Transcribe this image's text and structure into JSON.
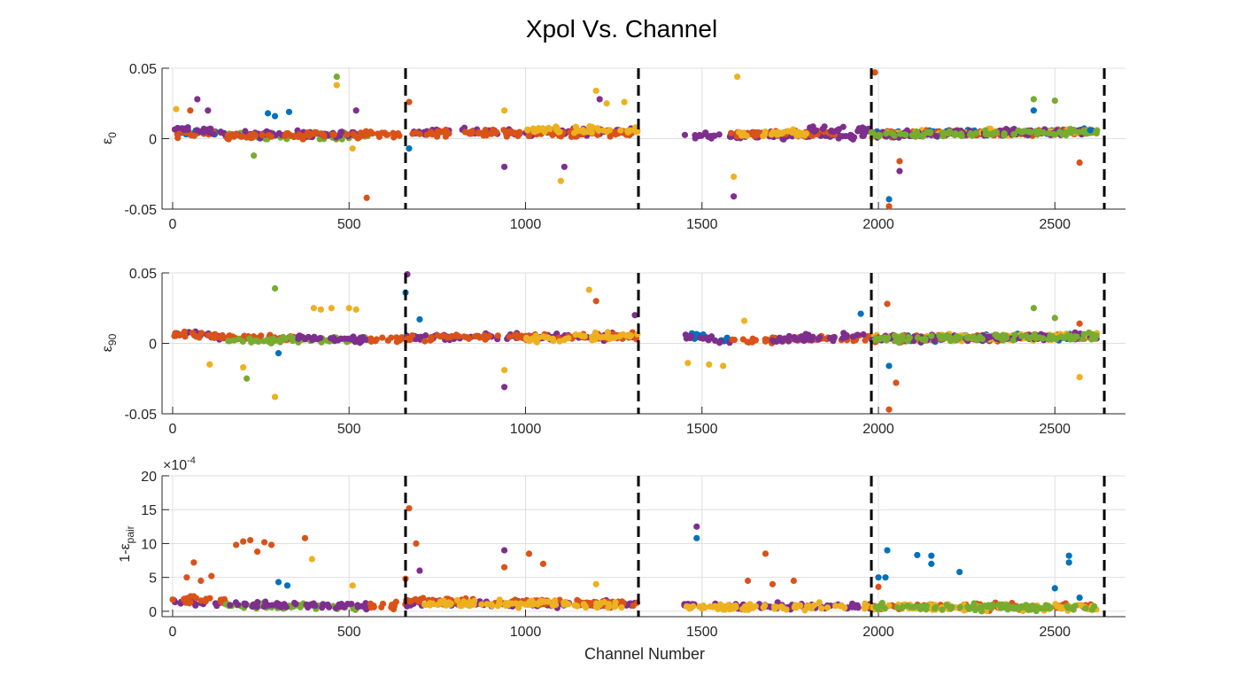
{
  "figure_title": "Xpol Vs. Channel",
  "xlabel": "Channel Number",
  "chart_data": [
    {
      "type": "scatter",
      "ylabel_base": "ε",
      "ylabel_sub": "0",
      "xlim": [
        -30,
        2700
      ],
      "ylim": [
        -0.05,
        0.05
      ],
      "xticks": [
        0,
        500,
        1000,
        1500,
        2000,
        2500
      ],
      "xtick_labels": [
        "0",
        "500",
        "1000",
        "1500",
        "2000",
        "2500"
      ],
      "yticks": [
        -0.05,
        0,
        0.05
      ],
      "ytick_labels": [
        "-0.05",
        "0",
        "0.05"
      ],
      "grid": true,
      "vertical_dashed_lines": [
        660,
        1320,
        1980,
        2640
      ],
      "series_colors": [
        "#0072BD",
        "#D95319",
        "#EDB120",
        "#7E2F8E",
        "#77AC30"
      ],
      "clusters": [
        {
          "x": [
            0,
            150
          ],
          "y": [
            0.005,
            0.004
          ],
          "s": 0
        },
        {
          "x": [
            0,
            150
          ],
          "y": [
            0.003,
            0.005
          ],
          "s": 1
        },
        {
          "x": [
            0,
            150
          ],
          "y": [
            0.006,
            0.005
          ],
          "s": 3
        },
        {
          "x": [
            150,
            560
          ],
          "y": [
            0.002,
            0.002
          ],
          "s": 4
        },
        {
          "x": [
            150,
            560
          ],
          "y": [
            0.003,
            0.003
          ],
          "s": 3
        },
        {
          "x": [
            150,
            560
          ],
          "y": [
            0.002,
            0.003
          ],
          "s": 1
        },
        {
          "x": [
            560,
            660
          ],
          "y": [
            0.003,
            0.003
          ],
          "s": 1
        },
        {
          "x": [
            660,
            1320
          ],
          "y": [
            0.005,
            0.005
          ],
          "s": 3
        },
        {
          "x": [
            660,
            1320
          ],
          "y": [
            0.004,
            0.004
          ],
          "s": 1
        },
        {
          "x": [
            1000,
            1320
          ],
          "y": [
            0.006,
            0.006
          ],
          "s": 2
        },
        {
          "x": [
            1450,
            1980
          ],
          "y": [
            0.002,
            0.002
          ],
          "s": 3
        },
        {
          "x": [
            1580,
            1880
          ],
          "y": [
            0.003,
            0.004
          ],
          "s": 1
        },
        {
          "x": [
            1600,
            1800
          ],
          "y": [
            0.003,
            0.004
          ],
          "s": 2
        },
        {
          "x": [
            1800,
            1980
          ],
          "y": [
            0.006,
            0.006
          ],
          "s": 3
        },
        {
          "x": [
            1980,
            2620
          ],
          "y": [
            0.003,
            0.005
          ],
          "s": 0
        },
        {
          "x": [
            1980,
            2620
          ],
          "y": [
            0.003,
            0.005
          ],
          "s": 1
        },
        {
          "x": [
            1980,
            2620
          ],
          "y": [
            0.003,
            0.005
          ],
          "s": 2
        },
        {
          "x": [
            1980,
            2620
          ],
          "y": [
            0.003,
            0.005
          ],
          "s": 3
        },
        {
          "x": [
            1980,
            2620
          ],
          "y": [
            0.003,
            0.005
          ],
          "s": 4
        }
      ],
      "points": [
        {
          "x": 465,
          "y": 0.044,
          "s": 4
        },
        {
          "x": 465,
          "y": 0.038,
          "s": 2
        },
        {
          "x": 70,
          "y": 0.028,
          "s": 3
        },
        {
          "x": 10,
          "y": 0.021,
          "s": 2
        },
        {
          "x": 50,
          "y": 0.02,
          "s": 1
        },
        {
          "x": 100,
          "y": 0.02,
          "s": 3
        },
        {
          "x": 270,
          "y": 0.018,
          "s": 0
        },
        {
          "x": 330,
          "y": 0.019,
          "s": 0
        },
        {
          "x": 290,
          "y": 0.016,
          "s": 0
        },
        {
          "x": 520,
          "y": 0.02,
          "s": 3
        },
        {
          "x": 230,
          "y": -0.012,
          "s": 4
        },
        {
          "x": 550,
          "y": -0.042,
          "s": 1
        },
        {
          "x": 510,
          "y": -0.007,
          "s": 2
        },
        {
          "x": 670,
          "y": 0.026,
          "s": 1
        },
        {
          "x": 670,
          "y": -0.007,
          "s": 0
        },
        {
          "x": 940,
          "y": -0.02,
          "s": 3
        },
        {
          "x": 940,
          "y": 0.02,
          "s": 2
        },
        {
          "x": 1100,
          "y": -0.03,
          "s": 2
        },
        {
          "x": 1110,
          "y": -0.02,
          "s": 3
        },
        {
          "x": 1200,
          "y": 0.034,
          "s": 2
        },
        {
          "x": 1210,
          "y": 0.028,
          "s": 3
        },
        {
          "x": 1230,
          "y": 0.025,
          "s": 2
        },
        {
          "x": 1280,
          "y": 0.026,
          "s": 2
        },
        {
          "x": 1600,
          "y": 0.044,
          "s": 2
        },
        {
          "x": 1590,
          "y": -0.027,
          "s": 2
        },
        {
          "x": 1590,
          "y": -0.041,
          "s": 3
        },
        {
          "x": 1990,
          "y": 0.047,
          "s": 1
        },
        {
          "x": 2030,
          "y": -0.043,
          "s": 0
        },
        {
          "x": 2030,
          "y": -0.048,
          "s": 1
        },
        {
          "x": 2060,
          "y": -0.023,
          "s": 3
        },
        {
          "x": 2060,
          "y": -0.016,
          "s": 1
        },
        {
          "x": 2440,
          "y": 0.028,
          "s": 4
        },
        {
          "x": 2440,
          "y": 0.02,
          "s": 0
        },
        {
          "x": 2500,
          "y": 0.027,
          "s": 4
        },
        {
          "x": 2570,
          "y": -0.017,
          "s": 1
        },
        {
          "x": 2600,
          "y": 0.006,
          "s": 0
        }
      ]
    },
    {
      "type": "scatter",
      "ylabel_base": "ε",
      "ylabel_sub": "90",
      "xlim": [
        -30,
        2700
      ],
      "ylim": [
        -0.05,
        0.05
      ],
      "xticks": [
        0,
        500,
        1000,
        1500,
        2000,
        2500
      ],
      "xtick_labels": [
        "0",
        "500",
        "1000",
        "1500",
        "2000",
        "2500"
      ],
      "yticks": [
        -0.05,
        0,
        0.05
      ],
      "ytick_labels": [
        "-0.05",
        "0",
        "0.05"
      ],
      "grid": true,
      "vertical_dashed_lines": [
        660,
        1320,
        1980,
        2640
      ],
      "series_colors": [
        "#0072BD",
        "#D95319",
        "#EDB120",
        "#7E2F8E",
        "#77AC30"
      ],
      "clusters": [
        {
          "x": [
            0,
            150
          ],
          "y": [
            0.007,
            0.005
          ],
          "s": 3
        },
        {
          "x": [
            0,
            150
          ],
          "y": [
            0.006,
            0.005
          ],
          "s": 1
        },
        {
          "x": [
            150,
            350
          ],
          "y": [
            0.004,
            0.004
          ],
          "s": 1
        },
        {
          "x": [
            150,
            560
          ],
          "y": [
            0.002,
            0.003
          ],
          "s": 4
        },
        {
          "x": [
            350,
            560
          ],
          "y": [
            0.004,
            0.003
          ],
          "s": 3
        },
        {
          "x": [
            560,
            660
          ],
          "y": [
            0.002,
            0.003
          ],
          "s": 1
        },
        {
          "x": [
            660,
            1320
          ],
          "y": [
            0.004,
            0.005
          ],
          "s": 3
        },
        {
          "x": [
            660,
            1320
          ],
          "y": [
            0.004,
            0.005
          ],
          "s": 1
        },
        {
          "x": [
            1000,
            1320
          ],
          "y": [
            0.003,
            0.006
          ],
          "s": 2
        },
        {
          "x": [
            1450,
            1580
          ],
          "y": [
            0.005,
            0.002
          ],
          "s": 0
        },
        {
          "x": [
            1450,
            1580
          ],
          "y": [
            0.004,
            0.002
          ],
          "s": 3
        },
        {
          "x": [
            1580,
            1980
          ],
          "y": [
            0.002,
            0.004
          ],
          "s": 1
        },
        {
          "x": [
            1700,
            1980
          ],
          "y": [
            0.003,
            0.006
          ],
          "s": 3
        },
        {
          "x": [
            1980,
            2620
          ],
          "y": [
            0.003,
            0.005
          ],
          "s": 0
        },
        {
          "x": [
            1980,
            2620
          ],
          "y": [
            0.003,
            0.005
          ],
          "s": 1
        },
        {
          "x": [
            1980,
            2620
          ],
          "y": [
            0.003,
            0.005
          ],
          "s": 2
        },
        {
          "x": [
            1980,
            2620
          ],
          "y": [
            0.003,
            0.005
          ],
          "s": 3
        },
        {
          "x": [
            1980,
            2620
          ],
          "y": [
            0.003,
            0.005
          ],
          "s": 4
        }
      ],
      "points": [
        {
          "x": 290,
          "y": 0.039,
          "s": 4
        },
        {
          "x": 290,
          "y": -0.038,
          "s": 2
        },
        {
          "x": 210,
          "y": -0.025,
          "s": 4
        },
        {
          "x": 105,
          "y": -0.015,
          "s": 2
        },
        {
          "x": 200,
          "y": -0.017,
          "s": 2
        },
        {
          "x": 400,
          "y": 0.025,
          "s": 2
        },
        {
          "x": 420,
          "y": 0.024,
          "s": 2
        },
        {
          "x": 450,
          "y": 0.025,
          "s": 2
        },
        {
          "x": 500,
          "y": 0.025,
          "s": 2
        },
        {
          "x": 520,
          "y": 0.024,
          "s": 2
        },
        {
          "x": 300,
          "y": -0.007,
          "s": 0
        },
        {
          "x": 665,
          "y": 0.049,
          "s": 3
        },
        {
          "x": 660,
          "y": 0.036,
          "s": 0
        },
        {
          "x": 700,
          "y": 0.017,
          "s": 0
        },
        {
          "x": 940,
          "y": -0.031,
          "s": 3
        },
        {
          "x": 940,
          "y": -0.019,
          "s": 2
        },
        {
          "x": 1180,
          "y": 0.038,
          "s": 2
        },
        {
          "x": 1200,
          "y": 0.03,
          "s": 1
        },
        {
          "x": 1310,
          "y": 0.02,
          "s": 3
        },
        {
          "x": 1460,
          "y": -0.014,
          "s": 2
        },
        {
          "x": 1520,
          "y": -0.015,
          "s": 2
        },
        {
          "x": 1560,
          "y": -0.016,
          "s": 2
        },
        {
          "x": 1620,
          "y": 0.016,
          "s": 2
        },
        {
          "x": 1950,
          "y": 0.021,
          "s": 0
        },
        {
          "x": 2025,
          "y": 0.028,
          "s": 1
        },
        {
          "x": 2030,
          "y": -0.016,
          "s": 0
        },
        {
          "x": 2050,
          "y": -0.028,
          "s": 1
        },
        {
          "x": 2030,
          "y": -0.047,
          "s": 1
        },
        {
          "x": 2440,
          "y": 0.025,
          "s": 4
        },
        {
          "x": 2500,
          "y": 0.018,
          "s": 4
        },
        {
          "x": 2570,
          "y": -0.024,
          "s": 2
        },
        {
          "x": 2570,
          "y": 0.014,
          "s": 1
        }
      ]
    },
    {
      "type": "scatter",
      "ylabel_base": "1-ε",
      "ylabel_sub": "pair",
      "exponent_label": "×10",
      "exponent_power": "-4",
      "xlim": [
        -30,
        2700
      ],
      "ylim": [
        -0.8,
        20
      ],
      "xticks": [
        0,
        500,
        1000,
        1500,
        2000,
        2500
      ],
      "xtick_labels": [
        "0",
        "500",
        "1000",
        "1500",
        "2000",
        "2500"
      ],
      "yticks": [
        0,
        5,
        10,
        15,
        20
      ],
      "ytick_labels": [
        "0",
        "5",
        "10",
        "15",
        "20"
      ],
      "grid": true,
      "vertical_dashed_lines": [
        660,
        1320,
        1980,
        2640
      ],
      "series_colors": [
        "#0072BD",
        "#D95319",
        "#EDB120",
        "#7E2F8E",
        "#77AC30"
      ],
      "clusters": [
        {
          "x": [
            0,
            150
          ],
          "y": [
            1.5,
            1.2
          ],
          "s": 3
        },
        {
          "x": [
            0,
            150
          ],
          "y": [
            1.8,
            1.5
          ],
          "s": 1
        },
        {
          "x": [
            150,
            560
          ],
          "y": [
            0.8,
            0.6
          ],
          "s": 4
        },
        {
          "x": [
            150,
            560
          ],
          "y": [
            1.0,
            0.8
          ],
          "s": 3
        },
        {
          "x": [
            560,
            660
          ],
          "y": [
            0.8,
            1.0
          ],
          "s": 1
        },
        {
          "x": [
            660,
            1320
          ],
          "y": [
            1.2,
            1.0
          ],
          "s": 3
        },
        {
          "x": [
            660,
            1320
          ],
          "y": [
            1.5,
            1.2
          ],
          "s": 1
        },
        {
          "x": [
            700,
            1320
          ],
          "y": [
            1.2,
            1.0
          ],
          "s": 2
        },
        {
          "x": [
            1450,
            1980
          ],
          "y": [
            0.7,
            0.7
          ],
          "s": 3
        },
        {
          "x": [
            1450,
            1980
          ],
          "y": [
            0.6,
            0.7
          ],
          "s": 2
        },
        {
          "x": [
            1980,
            2620
          ],
          "y": [
            0.6,
            0.8
          ],
          "s": 1
        },
        {
          "x": [
            1980,
            2620
          ],
          "y": [
            0.6,
            0.6
          ],
          "s": 2
        },
        {
          "x": [
            1980,
            2620
          ],
          "y": [
            0.6,
            0.6
          ],
          "s": 4
        }
      ],
      "points": [
        {
          "x": 40,
          "y": 5.0,
          "s": 1
        },
        {
          "x": 60,
          "y": 7.2,
          "s": 1
        },
        {
          "x": 80,
          "y": 4.5,
          "s": 1
        },
        {
          "x": 110,
          "y": 5.2,
          "s": 1
        },
        {
          "x": 180,
          "y": 9.8,
          "s": 1
        },
        {
          "x": 200,
          "y": 10.3,
          "s": 1
        },
        {
          "x": 220,
          "y": 10.5,
          "s": 1
        },
        {
          "x": 240,
          "y": 8.8,
          "s": 1
        },
        {
          "x": 260,
          "y": 10.2,
          "s": 1
        },
        {
          "x": 280,
          "y": 9.8,
          "s": 1
        },
        {
          "x": 300,
          "y": 4.3,
          "s": 0
        },
        {
          "x": 325,
          "y": 3.8,
          "s": 0
        },
        {
          "x": 375,
          "y": 10.8,
          "s": 1
        },
        {
          "x": 395,
          "y": 7.7,
          "s": 2
        },
        {
          "x": 510,
          "y": 3.8,
          "s": 2
        },
        {
          "x": 670,
          "y": 15.2,
          "s": 1
        },
        {
          "x": 690,
          "y": 10.0,
          "s": 1
        },
        {
          "x": 700,
          "y": 6.0,
          "s": 3
        },
        {
          "x": 660,
          "y": 4.8,
          "s": 1
        },
        {
          "x": 940,
          "y": 9.0,
          "s": 3
        },
        {
          "x": 940,
          "y": 6.5,
          "s": 1
        },
        {
          "x": 1010,
          "y": 8.5,
          "s": 1
        },
        {
          "x": 1050,
          "y": 7.0,
          "s": 1
        },
        {
          "x": 1200,
          "y": 4.0,
          "s": 2
        },
        {
          "x": 1485,
          "y": 12.5,
          "s": 3
        },
        {
          "x": 1485,
          "y": 10.8,
          "s": 0
        },
        {
          "x": 1680,
          "y": 8.5,
          "s": 1
        },
        {
          "x": 1630,
          "y": 4.5,
          "s": 1
        },
        {
          "x": 1700,
          "y": 4.0,
          "s": 1
        },
        {
          "x": 1760,
          "y": 4.5,
          "s": 1
        },
        {
          "x": 2000,
          "y": 5.0,
          "s": 0
        },
        {
          "x": 2025,
          "y": 9.0,
          "s": 0
        },
        {
          "x": 2000,
          "y": 3.6,
          "s": 1
        },
        {
          "x": 2020,
          "y": 5.0,
          "s": 0
        },
        {
          "x": 2110,
          "y": 8.3,
          "s": 0
        },
        {
          "x": 2150,
          "y": 8.2,
          "s": 0
        },
        {
          "x": 2150,
          "y": 7.0,
          "s": 0
        },
        {
          "x": 2230,
          "y": 5.8,
          "s": 0
        },
        {
          "x": 2540,
          "y": 8.2,
          "s": 0
        },
        {
          "x": 2540,
          "y": 7.2,
          "s": 0
        },
        {
          "x": 2500,
          "y": 3.4,
          "s": 0
        },
        {
          "x": 2570,
          "y": 2.0,
          "s": 0
        }
      ]
    }
  ]
}
